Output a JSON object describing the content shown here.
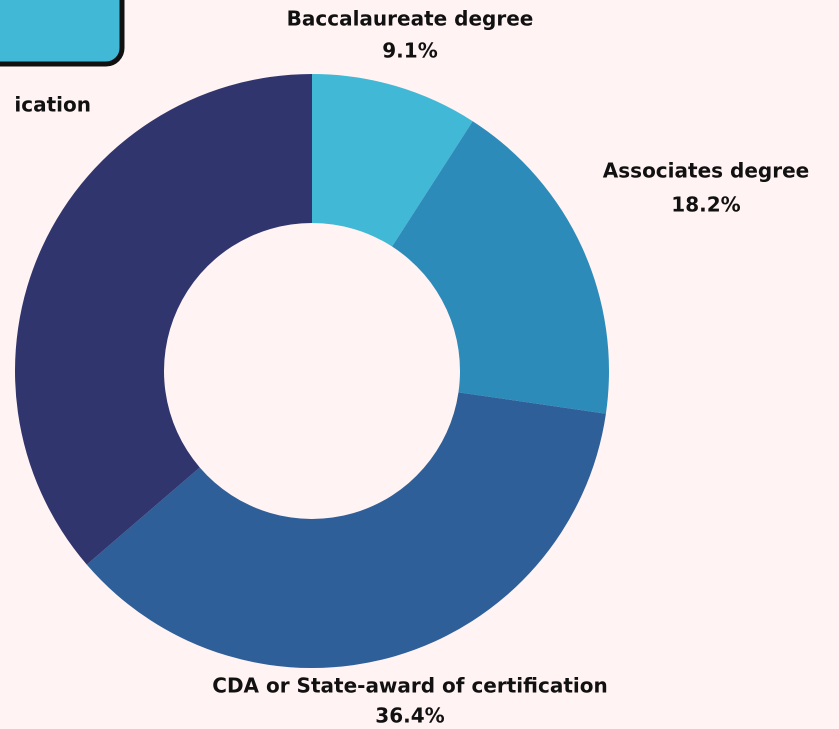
{
  "chart_data": {
    "type": "donut",
    "categories": [
      "Baccalaureate degree",
      "Associates degree",
      "CDA or State-award of certification",
      "ication"
    ],
    "values": [
      9.1,
      18.2,
      36.4,
      36.3
    ],
    "value_labels": [
      "9.1%",
      "18.2%",
      "36.4%",
      null
    ],
    "colors": [
      "#41b8d5",
      "#2d8bba",
      "#2f5f98",
      "#31356e"
    ]
  }
}
